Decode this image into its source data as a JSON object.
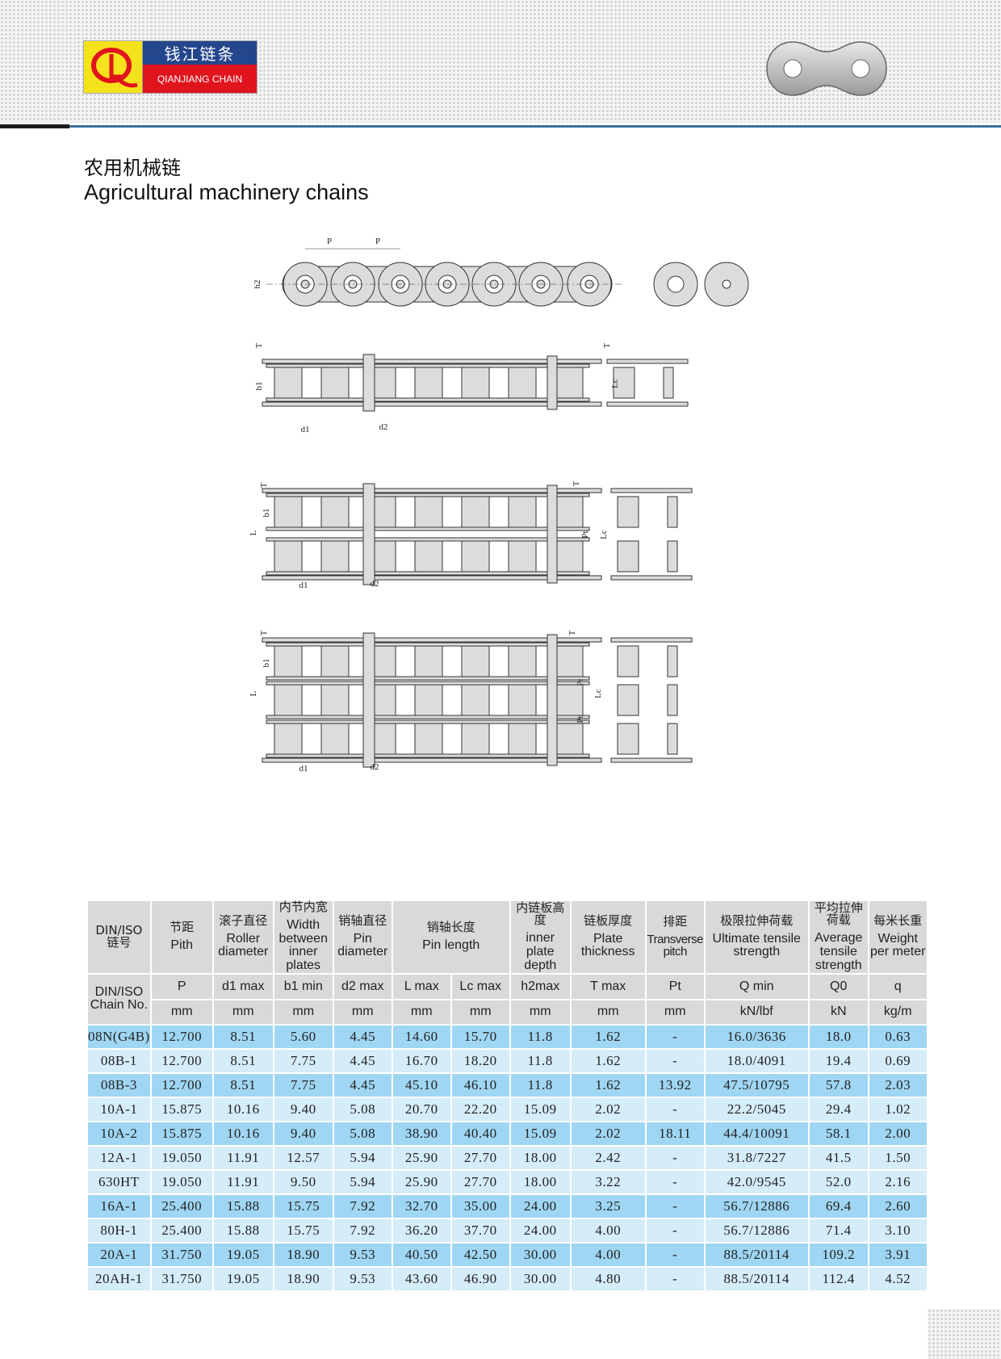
{
  "brand": {
    "name_cn": "钱江链条",
    "name_en": "QIANJIANG CHAIN",
    "logo_letters": "QJ"
  },
  "title": {
    "cn": "农用机械链",
    "en": "Agricultural machinery chains"
  },
  "diagram_labels": {
    "g1": [
      "P",
      "P",
      "h2"
    ],
    "g2": [
      "T",
      "b1",
      "d1",
      "d2",
      "T",
      "Lc"
    ],
    "g3": [
      "T",
      "b1",
      "L",
      "d1",
      "d2",
      "T",
      "Pt",
      "Lc"
    ],
    "g4": [
      "T",
      "b1",
      "L",
      "d1",
      "d2",
      "T",
      "Pt",
      "Pt",
      "Lc"
    ]
  },
  "table": {
    "header": {
      "chain_cn": "DIN/ISO",
      "chain_cn2": "链号",
      "chain_en": "DIN/ISO",
      "chain_en2": "Chain No.",
      "cols": [
        {
          "cn": "节距",
          "en": "Pith",
          "sym": "P",
          "unit": "mm"
        },
        {
          "cn": "滚子直径",
          "en": "Roller diameter",
          "sym": "d1 max",
          "unit": "mm"
        },
        {
          "cn": "内节内宽",
          "en": "Width between inner plates",
          "sym": "b1 min",
          "unit": "mm"
        },
        {
          "cn": "销轴直径",
          "en": "Pin diameter",
          "sym": "d2 max",
          "unit": "mm"
        },
        {
          "cn": "销轴长度",
          "en": "Pin length",
          "sym": "L max",
          "unit": "mm",
          "sym2": "Lc max",
          "unit2": "mm"
        },
        {
          "cn": "内链板高度",
          "en": "inner plate depth",
          "sym": "h2max",
          "unit": "mm"
        },
        {
          "cn": "链板厚度",
          "en": "Plate thickness",
          "sym": "T max",
          "unit": "mm"
        },
        {
          "cn": "排距",
          "en": "Transverse pitch",
          "sym": "Pt",
          "unit": "mm"
        },
        {
          "cn": "极限拉伸荷载",
          "en": "Ultimate tensile strength",
          "sym": "Q min",
          "unit": "kN/lbf"
        },
        {
          "cn": "平均拉伸荷载",
          "en": "Average tensile strength",
          "sym": "Q0",
          "unit": "kN"
        },
        {
          "cn": "每米长重",
          "en": "Weight per meter",
          "sym": "q",
          "unit": "kg/m"
        }
      ]
    },
    "rows": [
      {
        "shade": "dark",
        "cells": [
          "08N(G4B)",
          "12.700",
          "8.51",
          "5.60",
          "4.45",
          "14.60",
          "15.70",
          "11.8",
          "1.62",
          "-",
          "16.0/3636",
          "18.0",
          "0.63"
        ]
      },
      {
        "shade": "light",
        "cells": [
          "08B-1",
          "12.700",
          "8.51",
          "7.75",
          "4.45",
          "16.70",
          "18.20",
          "11.8",
          "1.62",
          "-",
          "18.0/4091",
          "19.4",
          "0.69"
        ]
      },
      {
        "shade": "dark",
        "cells": [
          "08B-3",
          "12.700",
          "8.51",
          "7.75",
          "4.45",
          "45.10",
          "46.10",
          "11.8",
          "1.62",
          "13.92",
          "47.5/10795",
          "57.8",
          "2.03"
        ]
      },
      {
        "shade": "light",
        "cells": [
          "10A-1",
          "15.875",
          "10.16",
          "9.40",
          "5.08",
          "20.70",
          "22.20",
          "15.09",
          "2.02",
          "-",
          "22.2/5045",
          "29.4",
          "1.02"
        ]
      },
      {
        "shade": "dark",
        "cells": [
          "10A-2",
          "15.875",
          "10.16",
          "9.40",
          "5.08",
          "38.90",
          "40.40",
          "15.09",
          "2.02",
          "18.11",
          "44.4/10091",
          "58.1",
          "2.00"
        ]
      },
      {
        "shade": "light",
        "cells": [
          "12A-1",
          "19.050",
          "11.91",
          "12.57",
          "5.94",
          "25.90",
          "27.70",
          "18.00",
          "2.42",
          "-",
          "31.8/7227",
          "41.5",
          "1.50"
        ]
      },
      {
        "shade": "light",
        "cells": [
          "630HT",
          "19.050",
          "11.91",
          "9.50",
          "5.94",
          "25.90",
          "27.70",
          "18.00",
          "3.22",
          "-",
          "42.0/9545",
          "52.0",
          "2.16"
        ]
      },
      {
        "shade": "dark",
        "cells": [
          "16A-1",
          "25.400",
          "15.88",
          "15.75",
          "7.92",
          "32.70",
          "35.00",
          "24.00",
          "3.25",
          "-",
          "56.7/12886",
          "69.4",
          "2.60"
        ]
      },
      {
        "shade": "light",
        "cells": [
          "80H-1",
          "25.400",
          "15.88",
          "15.75",
          "7.92",
          "36.20",
          "37.70",
          "24.00",
          "4.00",
          "-",
          "56.7/12886",
          "71.4",
          "3.10"
        ]
      },
      {
        "shade": "dark",
        "cells": [
          "20A-1",
          "31.750",
          "19.05",
          "18.90",
          "9.53",
          "40.50",
          "42.50",
          "30.00",
          "4.00",
          "-",
          "88.5/20114",
          "109.2",
          "3.91"
        ]
      },
      {
        "shade": "light",
        "cells": [
          "20AH-1",
          "31.750",
          "19.05",
          "18.90",
          "9.53",
          "43.60",
          "46.90",
          "30.00",
          "4.80",
          "-",
          "88.5/20114",
          "112.4",
          "4.52"
        ]
      }
    ]
  },
  "colors": {
    "row_dark": "#9fd6f3",
    "row_light": "#d5ecf9",
    "header": "#d9d9d9",
    "brand_blue": "#24468c",
    "brand_red": "#e0141d",
    "brand_yellow": "#f4e21c"
  }
}
